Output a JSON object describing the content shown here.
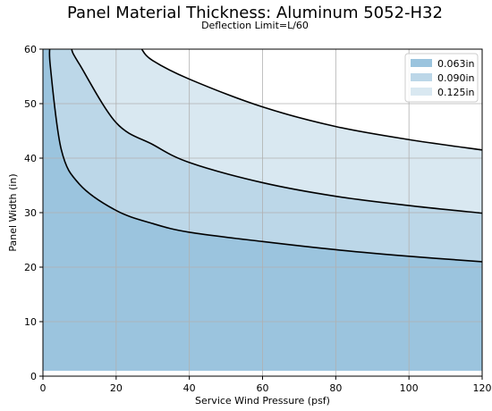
{
  "chart_data": {
    "type": "area",
    "title": "Panel Material Thickness: Aluminum 5052-H32",
    "subtitle": "Deflection Limit=L/60",
    "xlabel": "Service Wind Pressure (psf)",
    "ylabel": "Panel Width (in)",
    "xlim": [
      0,
      120
    ],
    "ylim": [
      0,
      60
    ],
    "xticks": [
      "0",
      "20",
      "40",
      "60",
      "80",
      "100",
      "120"
    ],
    "yticks": [
      "0",
      "10",
      "20",
      "30",
      "40",
      "50",
      "60"
    ],
    "grid": true,
    "legend_position": "top-right",
    "series": [
      {
        "name": "0.063in",
        "color": "#9bc4de",
        "x": [
          2,
          5,
          10,
          20,
          30,
          40,
          60,
          80,
          100,
          120
        ],
        "y": [
          57.0,
          41.6,
          35.2,
          30.4,
          28.0,
          26.4,
          24.7,
          23.2,
          22.0,
          21.0
        ]
      },
      {
        "name": "0.090in",
        "color": "#bcd7e8",
        "x": [
          8,
          10,
          20,
          30,
          40,
          60,
          80,
          100,
          120
        ],
        "y": [
          59.6,
          57.2,
          46.5,
          42.5,
          39.2,
          35.5,
          33.0,
          31.3,
          29.9
        ]
      },
      {
        "name": "0.125in",
        "color": "#d9e8f1",
        "x": [
          27,
          30,
          40,
          60,
          80,
          100,
          120
        ],
        "y": [
          60.0,
          57.9,
          54.5,
          49.4,
          45.8,
          43.4,
          41.5
        ]
      }
    ],
    "baseline": 1
  }
}
